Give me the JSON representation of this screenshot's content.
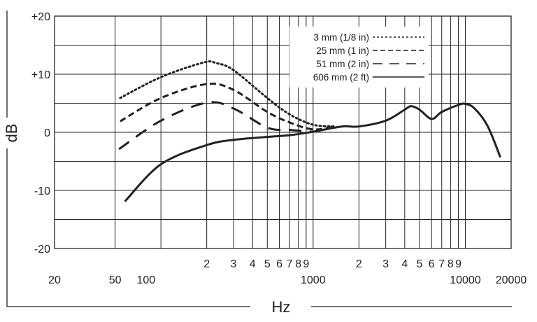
{
  "chart_data": {
    "type": "line",
    "title": "",
    "xlabel": "Hz",
    "ylabel": "dB",
    "xscale": "log",
    "xlim": [
      20,
      20000
    ],
    "ylim": [
      -20,
      20
    ],
    "grid": true,
    "legend_placement": "top-right",
    "x_tick_labels": [
      {
        "value": 20,
        "label": "20",
        "row": 2
      },
      {
        "value": 50,
        "label": "50",
        "row": 2
      },
      {
        "value": 100,
        "label": "100",
        "row": 2
      },
      {
        "value": 200,
        "label": "2",
        "row": 1
      },
      {
        "value": 300,
        "label": "3",
        "row": 1
      },
      {
        "value": 400,
        "label": "4",
        "row": 1
      },
      {
        "value": 500,
        "label": "5",
        "row": 1
      },
      {
        "value": 600,
        "label": "6",
        "row": 1
      },
      {
        "value": 700,
        "label": "7",
        "row": 1
      },
      {
        "value": 800,
        "label": "8",
        "row": 1
      },
      {
        "value": 900,
        "label": "9",
        "row": 1
      },
      {
        "value": 1000,
        "label": "1000",
        "row": 2
      },
      {
        "value": 2000,
        "label": "2",
        "row": 1
      },
      {
        "value": 3000,
        "label": "3",
        "row": 1
      },
      {
        "value": 4000,
        "label": "4",
        "row": 1
      },
      {
        "value": 5000,
        "label": "5",
        "row": 1
      },
      {
        "value": 6000,
        "label": "6",
        "row": 1
      },
      {
        "value": 7000,
        "label": "7",
        "row": 1
      },
      {
        "value": 8000,
        "label": "8",
        "row": 1
      },
      {
        "value": 9000,
        "label": "9",
        "row": 1
      },
      {
        "value": 10000,
        "label": "10000",
        "row": 2
      },
      {
        "value": 20000,
        "label": "20000",
        "row": 2
      }
    ],
    "x_gridlines": [
      50,
      100,
      200,
      300,
      400,
      500,
      600,
      700,
      800,
      900,
      1000,
      2000,
      3000,
      4000,
      5000,
      6000,
      7000,
      8000,
      9000,
      10000
    ],
    "y_ticks": [
      {
        "value": 20,
        "label": "+20"
      },
      {
        "value": 10,
        "label": "+10"
      },
      {
        "value": 0,
        "label": "0"
      },
      {
        "value": -10,
        "label": "-10"
      },
      {
        "value": -20,
        "label": "-20"
      }
    ],
    "y_gridlines": [
      -15,
      -10,
      -5,
      0,
      5,
      10,
      15
    ],
    "series": [
      {
        "name": "3 mm (1/8 in)",
        "style": "dotted",
        "color": "#222222",
        "points": [
          [
            54,
            5.9
          ],
          [
            100,
            9.5
          ],
          [
            190,
            12.0
          ],
          [
            232,
            11.9
          ],
          [
            300,
            10.7
          ],
          [
            500,
            5.9
          ],
          [
            700,
            3.1
          ],
          [
            1000,
            1.3
          ],
          [
            1400,
            1.0
          ]
        ]
      },
      {
        "name": "25 mm (1 in)",
        "style": "short-dash",
        "color": "#222222",
        "points": [
          [
            54,
            1.9
          ],
          [
            100,
            5.9
          ],
          [
            200,
            8.3
          ],
          [
            300,
            7.3
          ],
          [
            500,
            3.5
          ],
          [
            700,
            1.7
          ],
          [
            1000,
            0.5
          ],
          [
            1400,
            1.0
          ]
        ]
      },
      {
        "name": "51 mm (2 in)",
        "style": "long-dash",
        "color": "#222222",
        "points": [
          [
            53,
            -2.9
          ],
          [
            100,
            2.0
          ],
          [
            200,
            5.1
          ],
          [
            300,
            4.1
          ],
          [
            500,
            0.8
          ],
          [
            700,
            0.4
          ],
          [
            1000,
            0.1
          ]
        ]
      },
      {
        "name": "606 mm (2 ft)",
        "style": "solid",
        "color": "#222222",
        "points": [
          [
            58,
            -11.9
          ],
          [
            100,
            -5.5
          ],
          [
            200,
            -2.2
          ],
          [
            300,
            -1.3
          ],
          [
            500,
            -0.8
          ],
          [
            700,
            -0.5
          ],
          [
            1000,
            0.1
          ],
          [
            1540,
            1.0
          ],
          [
            2000,
            1.0
          ],
          [
            3000,
            2.0
          ],
          [
            4000,
            3.9
          ],
          [
            4400,
            4.5
          ],
          [
            5000,
            3.9
          ],
          [
            6000,
            2.3
          ],
          [
            7000,
            3.5
          ],
          [
            9000,
            4.7
          ],
          [
            10000,
            4.9
          ],
          [
            11500,
            4.1
          ],
          [
            14000,
            1.1
          ],
          [
            17000,
            -4.3
          ]
        ]
      }
    ]
  }
}
